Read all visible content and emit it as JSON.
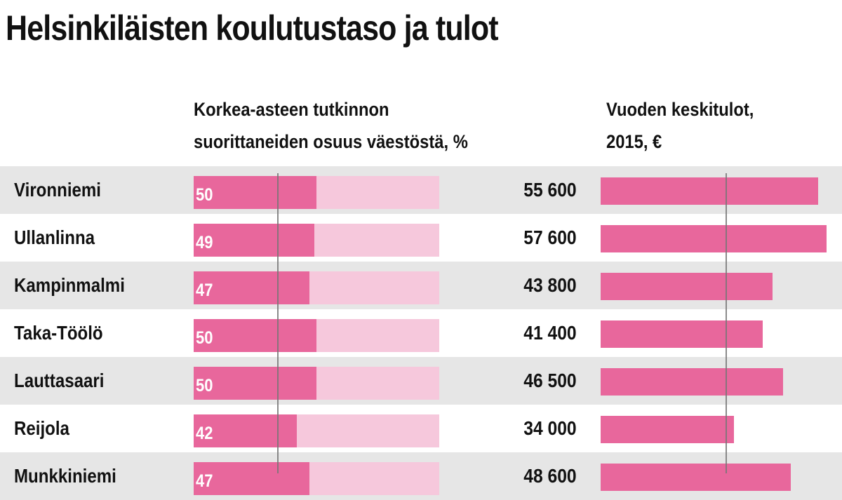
{
  "title": "Helsinkiläisten koulutustaso ja tulot",
  "colors": {
    "bar": "#e8679c",
    "track": "#f6c8dc",
    "shade": "#e6e6e6",
    "reference_line": "#777777"
  },
  "chart_data": {
    "type": "bar",
    "title": "Helsinkiläisten koulutustaso ja tulot",
    "categories": [
      "Vironniemi",
      "Ullanlinna",
      "Kampinmalmi",
      "Taka-Töölö",
      "Lauttasaari",
      "Reijola",
      "Munkkiniemi"
    ],
    "series": [
      {
        "name": "Korkea-asteen tutkinnon suorittaneiden osuus väestöstä, %",
        "header_lines": [
          "Korkea-asteen tutkinnon",
          "suorittaneiden osuus väestöstä, %"
        ],
        "values": [
          50,
          49,
          47,
          50,
          50,
          42,
          47
        ],
        "labels": [
          "50",
          "49",
          "47",
          "50",
          "50",
          "42",
          "47"
        ],
        "xlim": [
          0,
          100
        ],
        "reference_value": 34
      },
      {
        "name": "Vuoden keskitulot, 2015, €",
        "header_lines": [
          "Vuoden keskitulot,",
          "2015, €"
        ],
        "values": [
          55600,
          57600,
          43800,
          41400,
          46500,
          34000,
          48600
        ],
        "labels": [
          "55 600",
          "57 600",
          "43 800",
          "41 400",
          "46 500",
          "34 000",
          "48 600"
        ],
        "xlim": [
          0,
          60000
        ],
        "reference_value": 34000
      }
    ]
  }
}
